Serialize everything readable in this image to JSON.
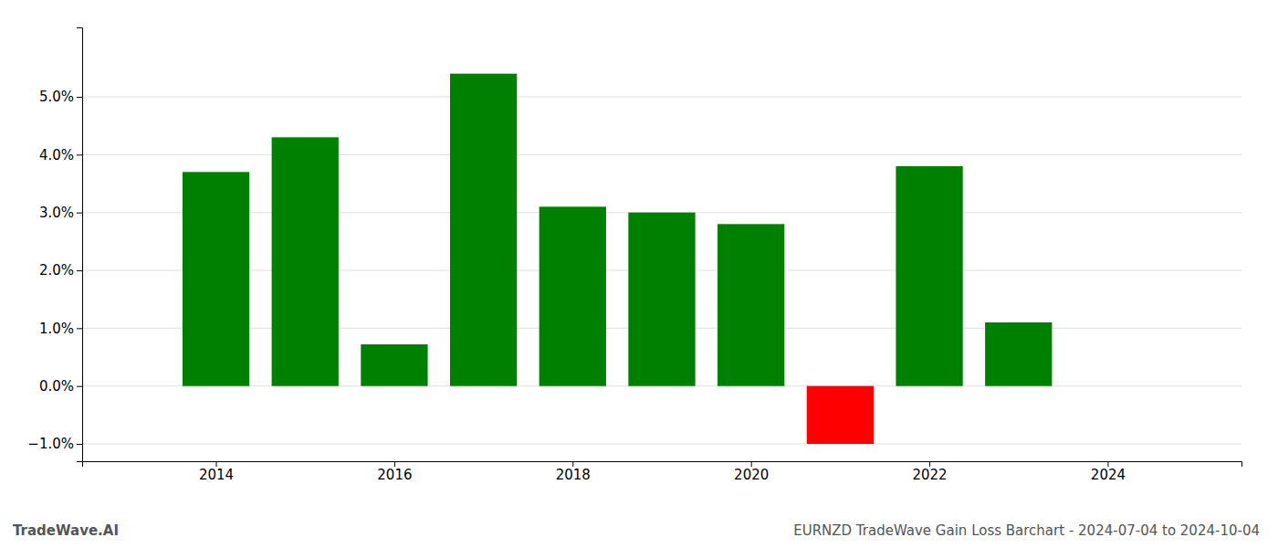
{
  "chart_data": {
    "type": "bar",
    "title": "EURNZD TradeWave Gain Loss Barchart - 2024-07-04 to 2024-10-04",
    "annotations": [
      "TradeWave.AI"
    ],
    "x": [
      2014,
      2015,
      2016,
      2017,
      2018,
      2019,
      2020,
      2021,
      2022,
      2023
    ],
    "values": [
      0.037,
      0.043,
      0.0072,
      0.054,
      0.031,
      0.03,
      0.028,
      -0.01,
      0.038,
      0.011
    ],
    "colors": [
      "#008000",
      "#008000",
      "#008000",
      "#008000",
      "#008000",
      "#008000",
      "#008000",
      "#ff0000",
      "#008000",
      "#008000"
    ],
    "xlim": [
      2012.5,
      2025.5
    ],
    "xticks": [
      2014,
      2016,
      2018,
      2020,
      2022,
      2024
    ],
    "ylim": [
      -0.013,
      0.062
    ],
    "yticks": [
      {
        "value": -0.01,
        "label": "−1.0%"
      },
      {
        "value": 0.0,
        "label": "0.0%"
      },
      {
        "value": 0.01,
        "label": "1.0%"
      },
      {
        "value": 0.02,
        "label": "2.0%"
      },
      {
        "value": 0.03,
        "label": "3.0%"
      },
      {
        "value": 0.04,
        "label": "4.0%"
      },
      {
        "value": 0.05,
        "label": "5.0%"
      }
    ],
    "grid": true
  }
}
